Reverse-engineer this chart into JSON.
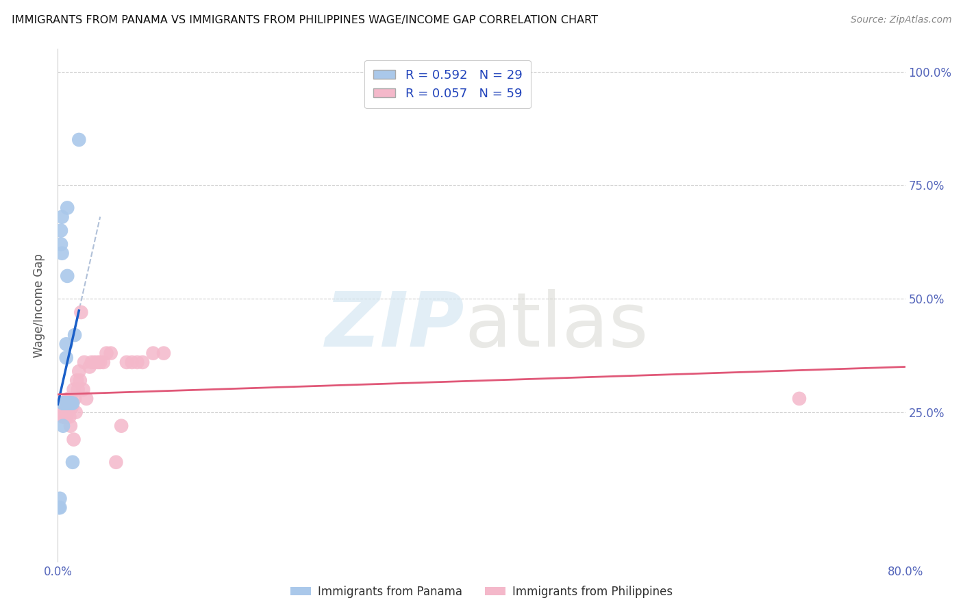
{
  "title": "IMMIGRANTS FROM PANAMA VS IMMIGRANTS FROM PHILIPPINES WAGE/INCOME GAP CORRELATION CHART",
  "source": "Source: ZipAtlas.com",
  "ylabel": "Wage/Income Gap",
  "panama_R": 0.592,
  "panama_N": 29,
  "philippines_R": 0.057,
  "philippines_N": 59,
  "panama_color": "#aac8ea",
  "philippines_color": "#f4b8ca",
  "panama_line_color": "#1a5fc8",
  "philippines_line_color": "#e05878",
  "dash_line_color": "#b0c0d8",
  "background_color": "#ffffff",
  "grid_color": "#cccccc",
  "panama_x": [
    0.001,
    0.002,
    0.002,
    0.003,
    0.003,
    0.004,
    0.004,
    0.005,
    0.005,
    0.005,
    0.005,
    0.006,
    0.006,
    0.007,
    0.007,
    0.008,
    0.008,
    0.009,
    0.009,
    0.01,
    0.01,
    0.01,
    0.011,
    0.012,
    0.013,
    0.014,
    0.014,
    0.016,
    0.02
  ],
  "panama_y": [
    0.04,
    0.06,
    0.04,
    0.62,
    0.65,
    0.68,
    0.6,
    0.27,
    0.27,
    0.27,
    0.22,
    0.27,
    0.27,
    0.27,
    0.27,
    0.37,
    0.4,
    0.55,
    0.7,
    0.27,
    0.27,
    0.27,
    0.27,
    0.27,
    0.27,
    0.27,
    0.14,
    0.42,
    0.85
  ],
  "philippines_x": [
    0.001,
    0.002,
    0.002,
    0.003,
    0.003,
    0.004,
    0.004,
    0.005,
    0.005,
    0.005,
    0.006,
    0.006,
    0.006,
    0.007,
    0.007,
    0.007,
    0.008,
    0.008,
    0.008,
    0.009,
    0.009,
    0.01,
    0.01,
    0.011,
    0.011,
    0.012,
    0.012,
    0.013,
    0.013,
    0.014,
    0.015,
    0.015,
    0.016,
    0.017,
    0.018,
    0.019,
    0.02,
    0.021,
    0.022,
    0.024,
    0.025,
    0.027,
    0.03,
    0.032,
    0.035,
    0.038,
    0.04,
    0.043,
    0.046,
    0.05,
    0.055,
    0.06,
    0.065,
    0.07,
    0.075,
    0.08,
    0.09,
    0.1,
    0.7
  ],
  "philippines_y": [
    0.27,
    0.27,
    0.25,
    0.26,
    0.25,
    0.27,
    0.25,
    0.27,
    0.25,
    0.24,
    0.27,
    0.26,
    0.24,
    0.27,
    0.26,
    0.24,
    0.27,
    0.26,
    0.24,
    0.27,
    0.25,
    0.28,
    0.26,
    0.27,
    0.24,
    0.28,
    0.22,
    0.27,
    0.26,
    0.27,
    0.3,
    0.19,
    0.28,
    0.25,
    0.32,
    0.3,
    0.34,
    0.32,
    0.47,
    0.3,
    0.36,
    0.28,
    0.35,
    0.36,
    0.36,
    0.36,
    0.36,
    0.36,
    0.38,
    0.38,
    0.14,
    0.22,
    0.36,
    0.36,
    0.36,
    0.36,
    0.38,
    0.38,
    0.28
  ],
  "xmin": 0.0,
  "xmax": 0.8,
  "ymin": -0.08,
  "ymax": 1.05,
  "yticks": [
    0.25,
    0.5,
    0.75,
    1.0
  ],
  "ytick_labels": [
    "25.0%",
    "50.0%",
    "75.0%",
    "100.0%"
  ]
}
